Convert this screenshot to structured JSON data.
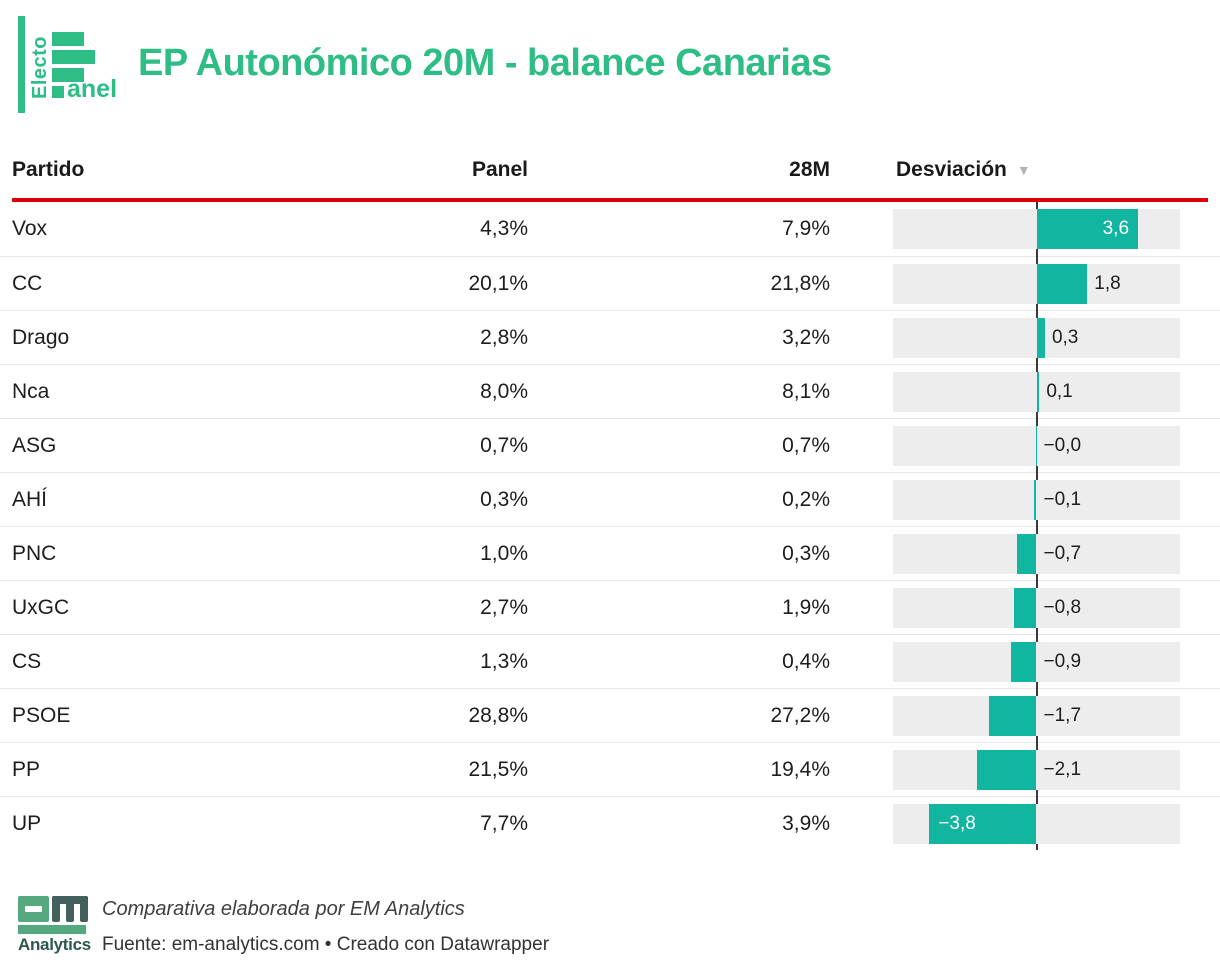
{
  "logo": {
    "brand": "ElectoPanel",
    "electo": "Electo",
    "anel": "anel"
  },
  "title": "EP Autonómico 20M - balance Canarias",
  "table": {
    "columns": {
      "partido": "Partido",
      "panel": "Panel",
      "m28": "28M",
      "desviacion": "Desviación"
    },
    "sort_icon": "▼",
    "rows": [
      {
        "party": "Vox",
        "panel": "4,3%",
        "m28": "7,9%",
        "dev": 3.6,
        "dev_label": "3,6"
      },
      {
        "party": "CC",
        "panel": "20,1%",
        "m28": "21,8%",
        "dev": 1.8,
        "dev_label": "1,8"
      },
      {
        "party": "Drago",
        "panel": "2,8%",
        "m28": "3,2%",
        "dev": 0.3,
        "dev_label": "0,3"
      },
      {
        "party": "Nca",
        "panel": "8,0%",
        "m28": "8,1%",
        "dev": 0.1,
        "dev_label": "0,1"
      },
      {
        "party": "ASG",
        "panel": "0,7%",
        "m28": "0,7%",
        "dev": -0.0,
        "dev_label": "−0,0"
      },
      {
        "party": "AHÍ",
        "panel": "0,3%",
        "m28": "0,2%",
        "dev": -0.1,
        "dev_label": "−0,1"
      },
      {
        "party": "PNC",
        "panel": "1,0%",
        "m28": "0,3%",
        "dev": -0.7,
        "dev_label": "−0,7"
      },
      {
        "party": "UxGC",
        "panel": "2,7%",
        "m28": "1,9%",
        "dev": -0.8,
        "dev_label": "−0,8"
      },
      {
        "party": "CS",
        "panel": "1,3%",
        "m28": "0,4%",
        "dev": -0.9,
        "dev_label": "−0,9"
      },
      {
        "party": "PSOE",
        "panel": "28,8%",
        "m28": "27,2%",
        "dev": -1.7,
        "dev_label": "−1,7"
      },
      {
        "party": "PP",
        "panel": "21,5%",
        "m28": "19,4%",
        "dev": -2.1,
        "dev_label": "−2,1"
      },
      {
        "party": "UP",
        "panel": "7,7%",
        "m28": "3,9%",
        "dev": -3.8,
        "dev_label": "−3,8"
      }
    ]
  },
  "chart_data": {
    "type": "table",
    "title": "EP Autonómico 20M - balance Canarias",
    "columns": [
      "Partido",
      "Panel",
      "28M",
      "Desviación"
    ],
    "categories": [
      "Vox",
      "CC",
      "Drago",
      "Nca",
      "ASG",
      "AHÍ",
      "PNC",
      "UxGC",
      "CS",
      "PSOE",
      "PP",
      "UP"
    ],
    "series": [
      {
        "name": "Panel",
        "values": [
          4.3,
          20.1,
          2.8,
          8.0,
          0.7,
          0.3,
          1.0,
          2.7,
          1.3,
          28.8,
          21.5,
          7.7
        ]
      },
      {
        "name": "28M",
        "values": [
          7.9,
          21.8,
          3.2,
          8.1,
          0.7,
          0.2,
          0.3,
          1.9,
          0.4,
          27.2,
          19.4,
          3.9
        ]
      },
      {
        "name": "Desviación",
        "values": [
          3.6,
          1.8,
          0.3,
          0.1,
          -0.0,
          -0.1,
          -0.7,
          -0.8,
          -0.9,
          -1.7,
          -2.1,
          -3.8
        ]
      }
    ],
    "bar_column": {
      "name": "Desviación",
      "type": "diverging-bar",
      "center": 0,
      "range": [
        -5.1,
        5.1
      ]
    },
    "sort": {
      "column": "Desviación",
      "direction": "desc"
    },
    "legend_position": "none",
    "grid": false
  },
  "footer": {
    "logo_text": "Analytics",
    "credit": "Comparativa elaborada por EM Analytics",
    "source": "Fuente: em-analytics.com • Creado con Datawrapper"
  },
  "colors": {
    "accent_green": "#2ebd85",
    "bar_teal": "#11b5a0",
    "header_rule_red": "#e00000",
    "bar_track_gray": "#ededed",
    "zero_axis": "#3a3a3a",
    "footer_logo_green": "#56a97e",
    "footer_logo_dark": "#44605c"
  }
}
